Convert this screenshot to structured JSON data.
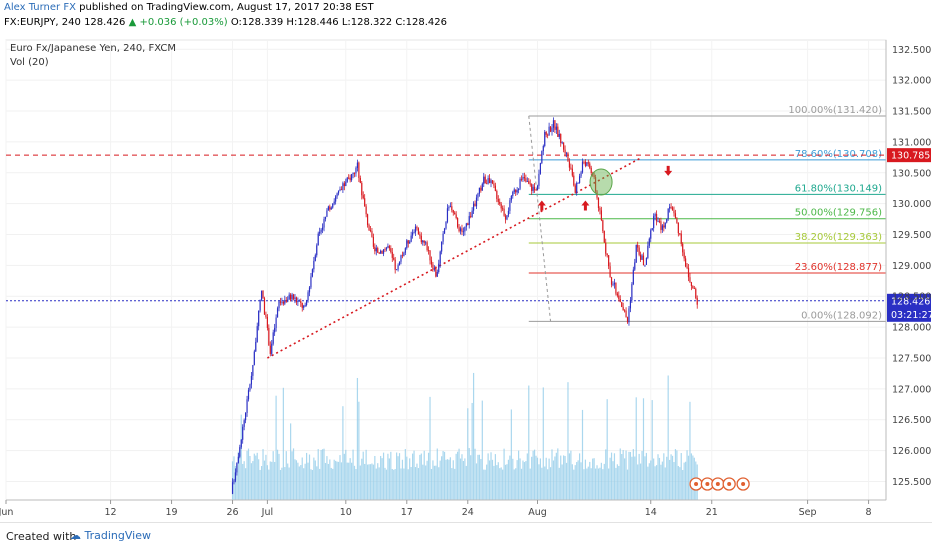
{
  "header": {
    "author": "Alex Turner FX",
    "published": "published on TradingView.com, August 17, 2017 20:38 EST",
    "symbol_line": "FX:EURJPY, 240",
    "last": "128.426",
    "change": "+0.036 (+0.03%)",
    "ohlc": "O:128.339 H:128.446 L:128.322 C:128.426"
  },
  "legend": {
    "instrument": "Euro Fx/Japanese Yen, 240, FXCM",
    "indicator": "Vol (20)"
  },
  "footer": {
    "created_with": "Created with",
    "brand": "TradingView"
  },
  "colors": {
    "bull": "#2a2fc4",
    "bear": "#d8191f",
    "volume": "#8ec9e8",
    "resistance": "#d8191f",
    "price_line": "#2a2fc4"
  },
  "chart_data": {
    "type": "candlestick",
    "y_axis": {
      "min": 125.2,
      "max": 132.65,
      "ticks": [
        "125.500",
        "126.000",
        "126.500",
        "127.000",
        "127.500",
        "128.000",
        "128.500",
        "129.000",
        "129.500",
        "130.000",
        "130.500",
        "131.000",
        "131.500",
        "132.000",
        "132.500"
      ]
    },
    "x_axis": {
      "ticks": [
        {
          "label": "Jun",
          "day": 0
        },
        {
          "label": "12",
          "day": 12
        },
        {
          "label": "19",
          "day": 19
        },
        {
          "label": "26",
          "day": 26
        },
        {
          "label": "Jul",
          "day": 30
        },
        {
          "label": "10",
          "day": 39
        },
        {
          "label": "17",
          "day": 46
        },
        {
          "label": "24",
          "day": 53
        },
        {
          "label": "Aug",
          "day": 61
        },
        {
          "label": "14",
          "day": 74
        },
        {
          "label": "21",
          "day": 81
        },
        {
          "label": "Sep",
          "day": 92
        },
        {
          "label": "8",
          "day": 99
        }
      ],
      "day_min": 0,
      "day_max": 101
    },
    "path": [
      {
        "day": 0,
        "price": 125.3
      },
      {
        "day": 26,
        "price": 125.3
      },
      {
        "day": 27.5,
        "price": 126.5
      },
      {
        "day": 28.5,
        "price": 127.4
      },
      {
        "day": 29.5,
        "price": 128.6
      },
      {
        "day": 30.5,
        "price": 127.6
      },
      {
        "day": 31.5,
        "price": 128.4
      },
      {
        "day": 33,
        "price": 128.5
      },
      {
        "day": 34.5,
        "price": 128.3
      },
      {
        "day": 36,
        "price": 129.5
      },
      {
        "day": 37.5,
        "price": 130.0
      },
      {
        "day": 39,
        "price": 130.3
      },
      {
        "day": 40.5,
        "price": 130.6
      },
      {
        "day": 41.5,
        "price": 129.8
      },
      {
        "day": 42.5,
        "price": 129.2
      },
      {
        "day": 44,
        "price": 129.3
      },
      {
        "day": 45,
        "price": 128.9
      },
      {
        "day": 46,
        "price": 129.3
      },
      {
        "day": 47,
        "price": 129.6
      },
      {
        "day": 48.5,
        "price": 129.3
      },
      {
        "day": 49.5,
        "price": 128.8
      },
      {
        "day": 51,
        "price": 130.0
      },
      {
        "day": 52.5,
        "price": 129.5
      },
      {
        "day": 54,
        "price": 130.0
      },
      {
        "day": 55,
        "price": 130.4
      },
      {
        "day": 56,
        "price": 130.3
      },
      {
        "day": 57.5,
        "price": 129.8
      },
      {
        "day": 58.5,
        "price": 130.2
      },
      {
        "day": 59.5,
        "price": 130.4
      },
      {
        "day": 61,
        "price": 130.2
      },
      {
        "day": 62,
        "price": 131.1
      },
      {
        "day": 63,
        "price": 131.3
      },
      {
        "day": 64.5,
        "price": 130.8
      },
      {
        "day": 65.5,
        "price": 130.2
      },
      {
        "day": 66.5,
        "price": 130.7
      },
      {
        "day": 67.5,
        "price": 130.5
      },
      {
        "day": 68.5,
        "price": 129.7
      },
      {
        "day": 69.5,
        "price": 128.8
      },
      {
        "day": 70.5,
        "price": 128.5
      },
      {
        "day": 71.5,
        "price": 128.1
      },
      {
        "day": 72.5,
        "price": 129.3
      },
      {
        "day": 73.5,
        "price": 129.0
      },
      {
        "day": 74.5,
        "price": 129.8
      },
      {
        "day": 75.5,
        "price": 129.6
      },
      {
        "day": 76.5,
        "price": 130.0
      },
      {
        "day": 77.5,
        "price": 129.5
      },
      {
        "day": 78.5,
        "price": 128.8
      },
      {
        "day": 79.5,
        "price": 128.43
      }
    ],
    "fibonacci": [
      {
        "label": "100.00%(131.420)",
        "price": 131.42,
        "color": "#9b9b9b"
      },
      {
        "label": "78.60%(130.708)",
        "price": 130.708,
        "color": "#3e9bd6"
      },
      {
        "label": "61.80%(130.149)",
        "price": 130.149,
        "color": "#1fa88f"
      },
      {
        "label": "50.00%(129.756)",
        "price": 129.756,
        "color": "#4cb849"
      },
      {
        "label": "38.20%(129.363)",
        "price": 129.363,
        "color": "#a7c93a"
      },
      {
        "label": "23.60%(128.877)",
        "price": 128.877,
        "color": "#e0332b"
      },
      {
        "label": "0.00%(128.092)",
        "price": 128.092,
        "color": "#9b9b9b"
      }
    ],
    "resistance": {
      "price": 130.785,
      "label": "130.785"
    },
    "current_price": {
      "price": 128.426,
      "label": "128.426",
      "countdown": "03:21:27"
    },
    "trendline": {
      "from": {
        "day": 30,
        "price": 127.5
      },
      "to": {
        "day": 73,
        "price": 130.75
      }
    }
  }
}
